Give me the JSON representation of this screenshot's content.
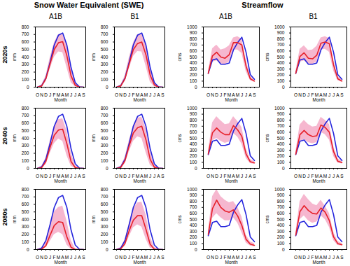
{
  "chart_data": {
    "type": "line",
    "x": [
      "O",
      "N",
      "D",
      "J",
      "F",
      "M",
      "A",
      "M",
      "J",
      "J",
      "A",
      "S"
    ],
    "xlabel": "Month",
    "rows": [
      "2020s",
      "2040s",
      "2080s"
    ],
    "columns": [
      "A1B",
      "B1"
    ],
    "groups": [
      {
        "title": "Snow Water Equivalent (SWE)",
        "ylabel": "mm",
        "ylim": [
          0,
          800
        ],
        "yticks": [
          0,
          100,
          200,
          300,
          400,
          500,
          600,
          700,
          800
        ],
        "series": [
          {
            "color": "#2323dc",
            "values": [
              0,
              20,
              120,
              330,
              560,
              690,
              720,
              560,
              260,
              60,
              5,
              0
            ]
          }
        ],
        "panels": [
          [
            {
              "series": [
                {
                  "color": "#e6202a",
                  "values": [
                    0,
                    15,
                    110,
                    310,
                    500,
                    590,
                    605,
                    420,
                    150,
                    25,
                    0,
                    0
                  ]
                }
              ],
              "band": {
                "color": "#f6b7cf",
                "low": [
                  0,
                  5,
                  70,
                  240,
                  400,
                  470,
                  460,
                  260,
                  60,
                  5,
                  0,
                  0
                ],
                "high": [
                  0,
                  30,
                  150,
                  390,
                  590,
                  700,
                  700,
                  560,
                  250,
                  60,
                  5,
                  0
                ]
              }
            },
            {
              "series": [
                {
                  "color": "#e6202a",
                  "values": [
                    0,
                    15,
                    110,
                    310,
                    500,
                    580,
                    600,
                    430,
                    160,
                    30,
                    0,
                    0
                  ]
                }
              ],
              "band": {
                "color": "#f6b7cf",
                "low": [
                  0,
                  5,
                  75,
                  245,
                  410,
                  475,
                  470,
                  280,
                  70,
                  5,
                  0,
                  0
                ],
                "high": [
                  0,
                  30,
                  150,
                  390,
                  590,
                  700,
                  700,
                  560,
                  250,
                  60,
                  5,
                  0
                ]
              }
            }
          ],
          [
            {
              "series": [
                {
                  "color": "#e6202a",
                  "values": [
                    0,
                    10,
                    90,
                    280,
                    440,
                    510,
                    520,
                    330,
                    90,
                    10,
                    0,
                    0
                  ]
                }
              ],
              "band": {
                "color": "#f6b7cf",
                "low": [
                  0,
                  5,
                  50,
                  200,
                  330,
                  390,
                  360,
                  170,
                  30,
                  0,
                  0,
                  0
                ],
                "high": [
                  0,
                  25,
                  140,
                  360,
                  560,
                  650,
                  660,
                  500,
                  210,
                  40,
                  5,
                  0
                ]
              }
            },
            {
              "series": [
                {
                  "color": "#e6202a",
                  "values": [
                    0,
                    12,
                    100,
                    300,
                    470,
                    540,
                    560,
                    380,
                    120,
                    15,
                    0,
                    0
                  ]
                }
              ],
              "band": {
                "color": "#f6b7cf",
                "low": [
                  0,
                  5,
                  60,
                  220,
                  360,
                  420,
                  400,
                  210,
                  45,
                  0,
                  0,
                  0
                ],
                "high": [
                  0,
                  28,
                  145,
                  370,
                  570,
                  670,
                  680,
                  530,
                  230,
                  50,
                  5,
                  0
                ]
              }
            }
          ],
          [
            {
              "series": [
                {
                  "color": "#e6202a",
                  "values": [
                    0,
                    5,
                    50,
                    190,
                    320,
                    370,
                    360,
                    170,
                    30,
                    0,
                    0,
                    0
                  ]
                }
              ],
              "band": {
                "color": "#f6b7cf",
                "low": [
                  0,
                  0,
                  25,
                  110,
                  200,
                  230,
                  200,
                  60,
                  5,
                  0,
                  0,
                  0
                ],
                "high": [
                  0,
                  20,
                  110,
                  320,
                  500,
                  560,
                  580,
                  380,
                  120,
                  15,
                  0,
                  0
                ]
              }
            },
            {
              "series": [
                {
                  "color": "#e6202a",
                  "values": [
                    0,
                    8,
                    80,
                    250,
                    390,
                    450,
                    450,
                    270,
                    70,
                    5,
                    0,
                    0
                  ]
                }
              ],
              "band": {
                "color": "#f6b7cf",
                "low": [
                  0,
                  2,
                  45,
                  170,
                  290,
                  330,
                  300,
                  140,
                  20,
                  0,
                  0,
                  0
                ],
                "high": [
                  0,
                  25,
                  130,
                  350,
                  540,
                  620,
                  630,
                  460,
                  170,
                  30,
                  5,
                  0
                ]
              }
            }
          ]
        ]
      },
      {
        "title": "Streamflow",
        "ylabel": "cms",
        "ylim": [
          0,
          1000
        ],
        "yticks": [
          0,
          100,
          200,
          300,
          400,
          500,
          600,
          700,
          800,
          900,
          1000
        ],
        "series": [
          {
            "color": "#2323dc",
            "values": [
              230,
              450,
              470,
              380,
              380,
              400,
              620,
              740,
              830,
              580,
              210,
              130
            ]
          }
        ],
        "panels": [
          [
            {
              "series": [
                {
                  "color": "#e6202a",
                  "values": [
                    230,
                    520,
                    580,
                    500,
                    480,
                    540,
                    740,
                    740,
                    700,
                    350,
                    140,
                    100
                  ]
                }
              ],
              "band": {
                "color": "#f6b7cf",
                "low": [
                  200,
                  420,
                  440,
                  390,
                  380,
                  420,
                  620,
                  620,
                  560,
                  260,
                  110,
                  80
                ],
                "high": [
                  260,
                  640,
                  700,
                  620,
                  640,
                  690,
                  820,
                  840,
                  800,
                  450,
                  180,
                  120
                ]
              }
            },
            {
              "series": [
                {
                  "color": "#e6202a",
                  "values": [
                    230,
                    510,
                    570,
                    480,
                    470,
                    530,
                    730,
                    750,
                    720,
                    370,
                    140,
                    100
                  ]
                }
              ],
              "band": {
                "color": "#f6b7cf",
                "low": [
                  200,
                  420,
                  440,
                  390,
                  380,
                  420,
                  620,
                  630,
                  580,
                  270,
                  110,
                  80
                ],
                "high": [
                  260,
                  630,
                  690,
                  610,
                  620,
                  680,
                  820,
                  840,
                  810,
                  460,
                  180,
                  120
                ]
              }
            }
          ],
          [
            {
              "series": [
                {
                  "color": "#e6202a",
                  "values": [
                    240,
                    590,
                    670,
                    600,
                    560,
                    560,
                    710,
                    640,
                    530,
                    240,
                    110,
                    90
                  ]
                }
              ],
              "band": {
                "color": "#f6b7cf",
                "low": [
                  200,
                  460,
                  500,
                  450,
                  420,
                  440,
                  580,
                  520,
                  400,
                  170,
                  80,
                  70
                ],
                "high": [
                  280,
                  760,
                  860,
                  790,
                  730,
                  740,
                  860,
                  780,
                  680,
                  330,
                  150,
                  110
                ]
              }
            },
            {
              "series": [
                {
                  "color": "#e6202a",
                  "values": [
                    235,
                    560,
                    630,
                    560,
                    530,
                    540,
                    720,
                    680,
                    600,
                    280,
                    120,
                    95
                  ]
                }
              ],
              "band": {
                "color": "#f6b7cf",
                "low": [
                  200,
                  450,
                  480,
                  430,
                  410,
                  430,
                  600,
                  560,
                  470,
                  200,
                  90,
                  75
                ],
                "high": [
                  275,
                  720,
                  800,
                  730,
                  690,
                  700,
                  850,
                  800,
                  730,
                  370,
                  160,
                  115
                ]
              }
            }
          ],
          [
            {
              "series": [
                {
                  "color": "#e6202a",
                  "values": [
                    250,
                    680,
                    820,
                    700,
                    640,
                    620,
                    660,
                    560,
                    400,
                    170,
                    90,
                    70
                  ]
                }
              ],
              "band": {
                "color": "#f6b7cf",
                "low": [
                  210,
                  520,
                  600,
                  530,
                  480,
                  480,
                  530,
                  440,
                  280,
                  110,
                  60,
                  50
                ],
                "high": [
                  300,
                  880,
                  1000,
                  880,
                  820,
                  780,
                  800,
                  700,
                  540,
                  240,
                  130,
                  100
                ]
              }
            },
            {
              "series": [
                {
                  "color": "#e6202a",
                  "values": [
                    240,
                    630,
                    730,
                    650,
                    600,
                    590,
                    690,
                    620,
                    480,
                    210,
                    100,
                    80
                  ]
                }
              ],
              "band": {
                "color": "#f6b7cf",
                "low": [
                  210,
                  500,
                  560,
                  480,
                  440,
                  460,
                  560,
                  500,
                  370,
                  150,
                  70,
                  60
                ],
                "high": [
                  280,
                  800,
                  920,
                  830,
                  760,
                  730,
                  820,
                  720,
                  600,
                  290,
                  140,
                  100
                ]
              }
            }
          ]
        ]
      }
    ]
  }
}
